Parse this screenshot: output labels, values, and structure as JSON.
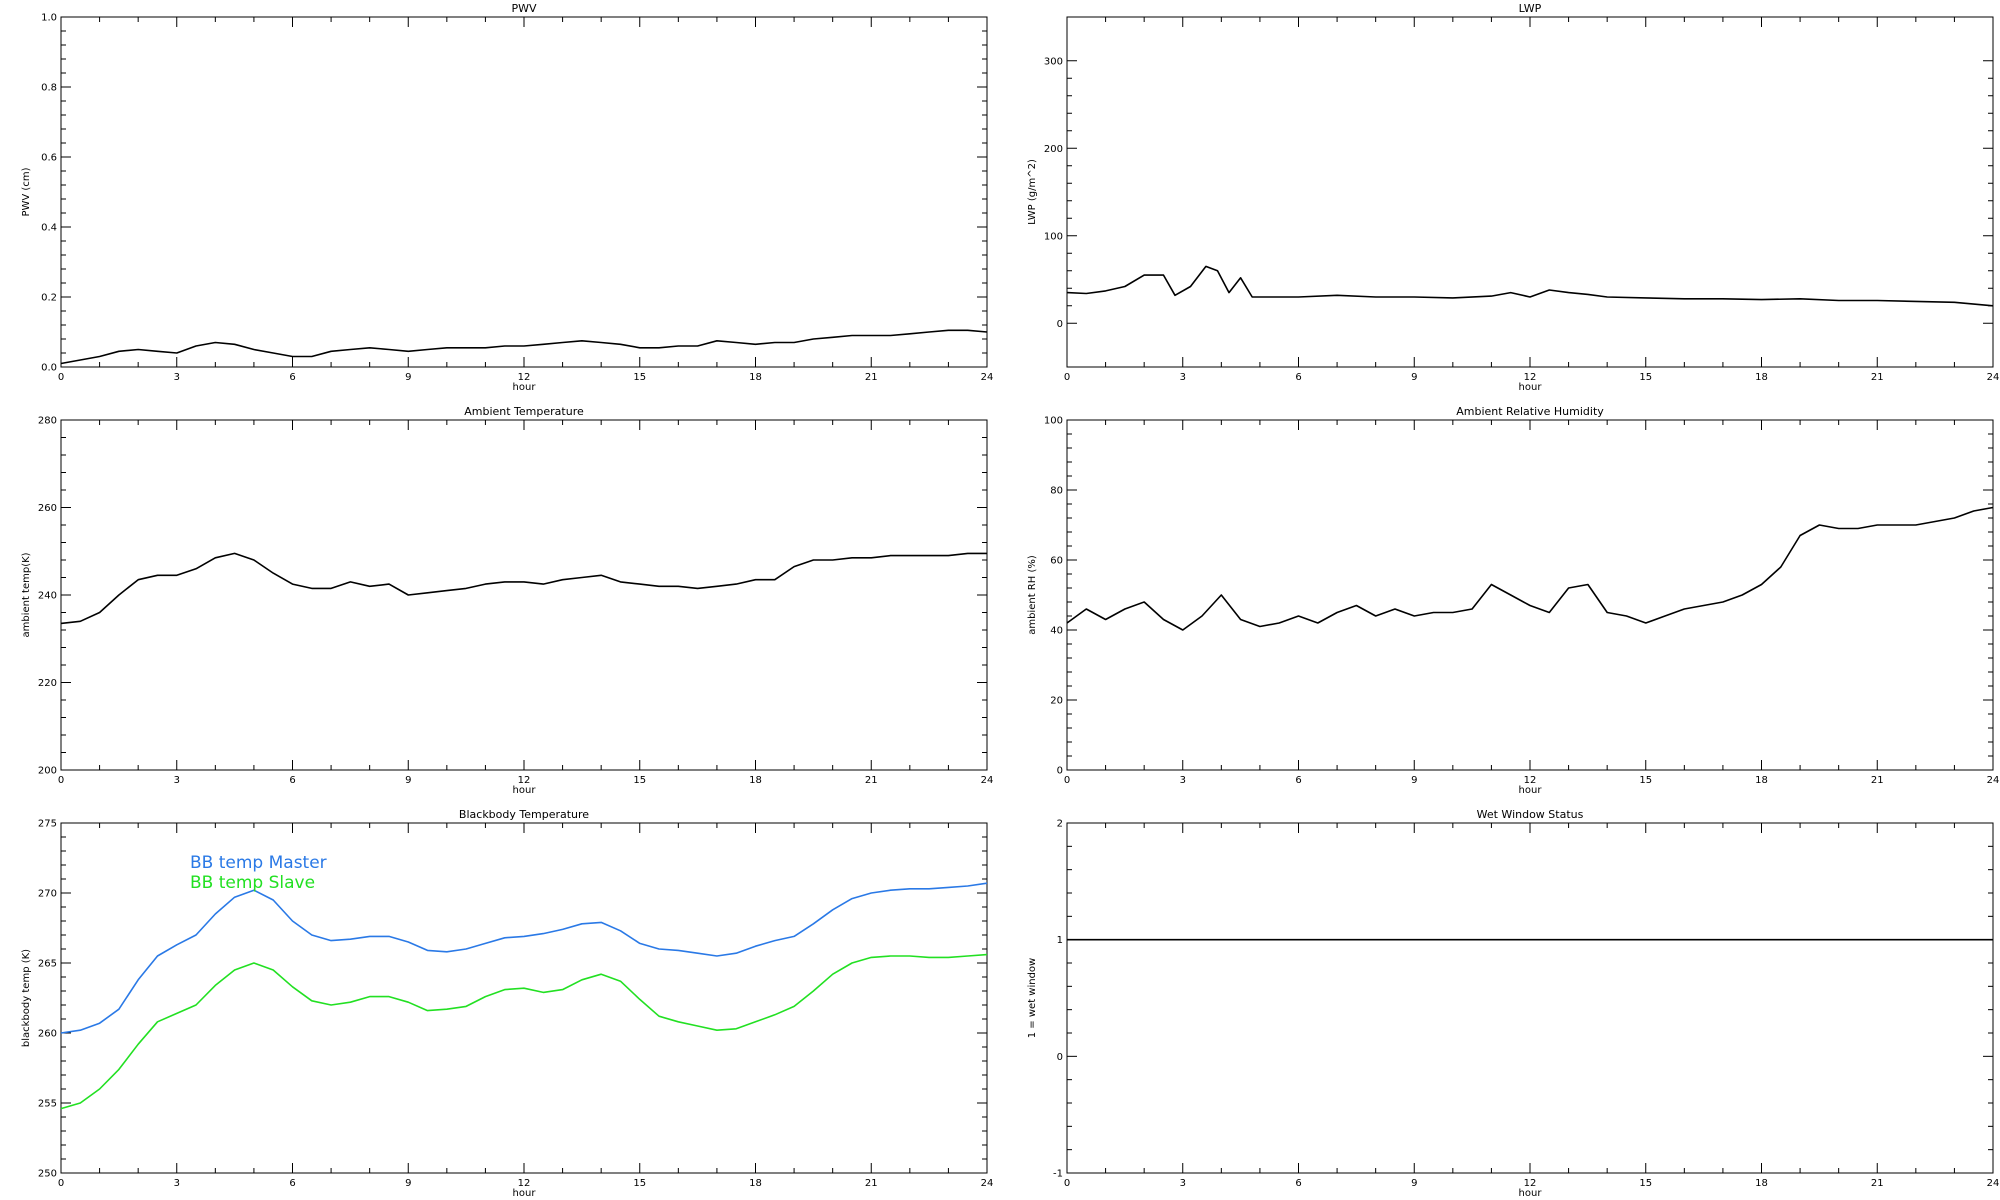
{
  "chart_data": [
    {
      "type": "line",
      "title": "PWV",
      "xlabel": "hour",
      "ylabel": "PWV (cm)",
      "xlim": [
        0,
        24
      ],
      "ylim": [
        0,
        1.0
      ],
      "xticks": [
        "0",
        "3",
        "6",
        "9",
        "12",
        "15",
        "18",
        "21",
        "24"
      ],
      "yticks": [
        "0.0",
        "0.2",
        "0.4",
        "0.6",
        "0.8",
        "1.0"
      ],
      "series": [
        {
          "color": "#000000",
          "x": [
            0,
            0.5,
            1,
            1.5,
            2,
            2.5,
            3,
            3.5,
            4,
            4.5,
            5,
            5.5,
            6,
            6.5,
            7,
            7.5,
            8,
            8.5,
            9,
            9.5,
            10,
            10.5,
            11,
            11.5,
            12,
            12.5,
            13,
            13.5,
            14,
            14.5,
            15,
            15.5,
            16,
            16.5,
            17,
            17.5,
            18,
            18.5,
            19,
            19.5,
            20,
            20.5,
            21,
            21.5,
            22,
            22.5,
            23,
            23.5,
            24
          ],
          "values": [
            0.01,
            0.02,
            0.03,
            0.045,
            0.05,
            0.045,
            0.04,
            0.06,
            0.07,
            0.065,
            0.05,
            0.04,
            0.03,
            0.03,
            0.045,
            0.05,
            0.055,
            0.05,
            0.045,
            0.05,
            0.055,
            0.055,
            0.055,
            0.06,
            0.06,
            0.065,
            0.07,
            0.075,
            0.07,
            0.065,
            0.055,
            0.055,
            0.06,
            0.06,
            0.075,
            0.07,
            0.065,
            0.07,
            0.07,
            0.08,
            0.085,
            0.09,
            0.09,
            0.09,
            0.095,
            0.1,
            0.105,
            0.105,
            0.1
          ]
        }
      ]
    },
    {
      "type": "line",
      "title": "LWP",
      "xlabel": "hour",
      "ylabel": "LWP (g/m^2)",
      "xlim": [
        0,
        24
      ],
      "ylim": [
        -50,
        350
      ],
      "xticks": [
        "0",
        "3",
        "6",
        "9",
        "12",
        "15",
        "18",
        "21",
        "24"
      ],
      "yticks": [
        "0",
        "100",
        "200",
        "300"
      ],
      "series": [
        {
          "color": "#000000",
          "x": [
            0,
            0.5,
            1,
            1.5,
            2,
            2.5,
            2.8,
            3.2,
            3.6,
            3.9,
            4.2,
            4.5,
            4.8,
            5.2,
            6,
            7,
            8,
            9,
            10,
            11,
            11.5,
            12,
            12.5,
            13,
            13.5,
            14,
            15,
            16,
            17,
            18,
            19,
            20,
            21,
            22,
            23,
            24
          ],
          "values": [
            35,
            34,
            37,
            42,
            55,
            55,
            32,
            42,
            65,
            60,
            35,
            52,
            30,
            30,
            30,
            32,
            30,
            30,
            29,
            31,
            35,
            30,
            38,
            35,
            33,
            30,
            29,
            28,
            28,
            27,
            28,
            26,
            26,
            25,
            24,
            20
          ]
        }
      ]
    },
    {
      "type": "line",
      "title": "Ambient Temperature",
      "xlabel": "hour",
      "ylabel": "ambient temp(K)",
      "xlim": [
        0,
        24
      ],
      "ylim": [
        200,
        280
      ],
      "xticks": [
        "0",
        "3",
        "6",
        "9",
        "12",
        "15",
        "18",
        "21",
        "24"
      ],
      "yticks": [
        "200",
        "220",
        "240",
        "260",
        "280"
      ],
      "series": [
        {
          "color": "#000000",
          "x": [
            0,
            0.5,
            1,
            1.5,
            2,
            2.5,
            3,
            3.5,
            4,
            4.5,
            5,
            5.5,
            6,
            6.5,
            7,
            7.5,
            8,
            8.5,
            9,
            9.5,
            10,
            10.5,
            11,
            11.5,
            12,
            12.5,
            13,
            13.5,
            14,
            14.5,
            15,
            15.5,
            16,
            16.5,
            17,
            17.5,
            18,
            18.5,
            19,
            19.5,
            20,
            20.5,
            21,
            21.5,
            22,
            22.5,
            23,
            23.5,
            24
          ],
          "values": [
            233.5,
            234,
            236,
            240,
            243.5,
            244.5,
            244.5,
            246,
            248.5,
            249.5,
            248,
            245,
            242.5,
            241.5,
            241.5,
            243,
            242,
            242.5,
            240,
            240.5,
            241,
            241.5,
            242.5,
            243,
            243,
            242.5,
            243.5,
            244,
            244.5,
            243,
            242.5,
            242,
            242,
            241.5,
            242,
            242.5,
            243.5,
            243.5,
            246.5,
            248,
            248,
            248.5,
            248.5,
            249,
            249,
            249,
            249,
            249.5,
            249.5
          ]
        }
      ]
    },
    {
      "type": "line",
      "title": "Ambient Relative Humidity",
      "xlabel": "hour",
      "ylabel": "ambient RH (%)",
      "xlim": [
        0,
        24
      ],
      "ylim": [
        0,
        100
      ],
      "xticks": [
        "0",
        "3",
        "6",
        "9",
        "12",
        "15",
        "18",
        "21",
        "24"
      ],
      "yticks": [
        "0",
        "20",
        "40",
        "60",
        "80",
        "100"
      ],
      "series": [
        {
          "color": "#000000",
          "x": [
            0,
            0.5,
            1,
            1.5,
            2,
            2.5,
            3,
            3.5,
            4,
            4.5,
            5,
            5.5,
            6,
            6.5,
            7,
            7.5,
            8,
            8.5,
            9,
            9.5,
            10,
            10.5,
            11,
            11.5,
            12,
            12.5,
            13,
            13.5,
            14,
            14.5,
            15,
            15.5,
            16,
            16.5,
            17,
            17.5,
            18,
            18.5,
            19,
            19.5,
            20,
            20.5,
            21,
            21.5,
            22,
            22.5,
            23,
            23.5,
            24
          ],
          "values": [
            42,
            46,
            43,
            46,
            48,
            43,
            40,
            44,
            50,
            43,
            41,
            42,
            44,
            42,
            45,
            47,
            44,
            46,
            44,
            45,
            45,
            46,
            53,
            50,
            47,
            45,
            52,
            53,
            45,
            44,
            42,
            44,
            46,
            47,
            48,
            50,
            53,
            58,
            67,
            70,
            69,
            69,
            70,
            70,
            70,
            71,
            72,
            74,
            75
          ]
        }
      ]
    },
    {
      "type": "line",
      "title": "Blackbody Temperature",
      "xlabel": "hour",
      "ylabel": "blackbody temp (K)",
      "xlim": [
        0,
        24
      ],
      "ylim": [
        250,
        275
      ],
      "xticks": [
        "0",
        "3",
        "6",
        "9",
        "12",
        "15",
        "18",
        "21",
        "24"
      ],
      "yticks": [
        "250",
        "255",
        "260",
        "265",
        "270",
        "275"
      ],
      "series": [
        {
          "name": "BB temp Master",
          "color": "#2a79e6",
          "x": [
            0,
            0.5,
            1,
            1.5,
            2,
            2.5,
            3,
            3.5,
            4,
            4.5,
            5,
            5.5,
            6,
            6.5,
            7,
            7.5,
            8,
            8.5,
            9,
            9.5,
            10,
            10.5,
            11,
            11.5,
            12,
            12.5,
            13,
            13.5,
            14,
            14.5,
            15,
            15.5,
            16,
            16.5,
            17,
            17.5,
            18,
            18.5,
            19,
            19.5,
            20,
            20.5,
            21,
            21.5,
            22,
            22.5,
            23,
            23.5,
            24
          ],
          "values": [
            260,
            260.2,
            260.7,
            261.7,
            263.8,
            265.5,
            266.3,
            267,
            268.5,
            269.7,
            270.2,
            269.5,
            268,
            267,
            266.6,
            266.7,
            266.9,
            266.9,
            266.5,
            265.9,
            265.8,
            266,
            266.4,
            266.8,
            266.9,
            267.1,
            267.4,
            267.8,
            267.9,
            267.3,
            266.4,
            266,
            265.9,
            265.7,
            265.5,
            265.7,
            266.2,
            266.6,
            266.9,
            267.8,
            268.8,
            269.6,
            270,
            270.2,
            270.3,
            270.3,
            270.4,
            270.5,
            270.7
          ]
        },
        {
          "name": "BB temp Slave",
          "color": "#22e022",
          "x": [
            0,
            0.5,
            1,
            1.5,
            2,
            2.5,
            3,
            3.5,
            4,
            4.5,
            5,
            5.5,
            6,
            6.5,
            7,
            7.5,
            8,
            8.5,
            9,
            9.5,
            10,
            10.5,
            11,
            11.5,
            12,
            12.5,
            13,
            13.5,
            14,
            14.5,
            15,
            15.5,
            16,
            16.5,
            17,
            17.5,
            18,
            18.5,
            19,
            19.5,
            20,
            20.5,
            21,
            21.5,
            22,
            22.5,
            23,
            23.5,
            24
          ],
          "values": [
            254.6,
            255,
            256,
            257.4,
            259.2,
            260.8,
            261.4,
            262,
            263.4,
            264.5,
            265,
            264.5,
            263.3,
            262.3,
            262,
            262.2,
            262.6,
            262.6,
            262.2,
            261.6,
            261.7,
            261.9,
            262.6,
            263.1,
            263.2,
            262.9,
            263.1,
            263.8,
            264.2,
            263.7,
            262.4,
            261.2,
            260.8,
            260.5,
            260.2,
            260.3,
            260.8,
            261.3,
            261.9,
            263,
            264.2,
            265,
            265.4,
            265.5,
            265.5,
            265.4,
            265.4,
            265.5,
            265.6
          ]
        }
      ]
    },
    {
      "type": "line",
      "title": "Wet Window Status",
      "xlabel": "hour",
      "ylabel": "1 = wet window",
      "xlim": [
        0,
        24
      ],
      "ylim": [
        -1,
        2
      ],
      "xticks": [
        "0",
        "3",
        "6",
        "9",
        "12",
        "15",
        "18",
        "21",
        "24"
      ],
      "yticks": [
        "-1",
        "0",
        "1",
        "2"
      ],
      "series": [
        {
          "color": "#000000",
          "x": [
            0,
            24
          ],
          "values": [
            1,
            1
          ]
        }
      ]
    }
  ]
}
